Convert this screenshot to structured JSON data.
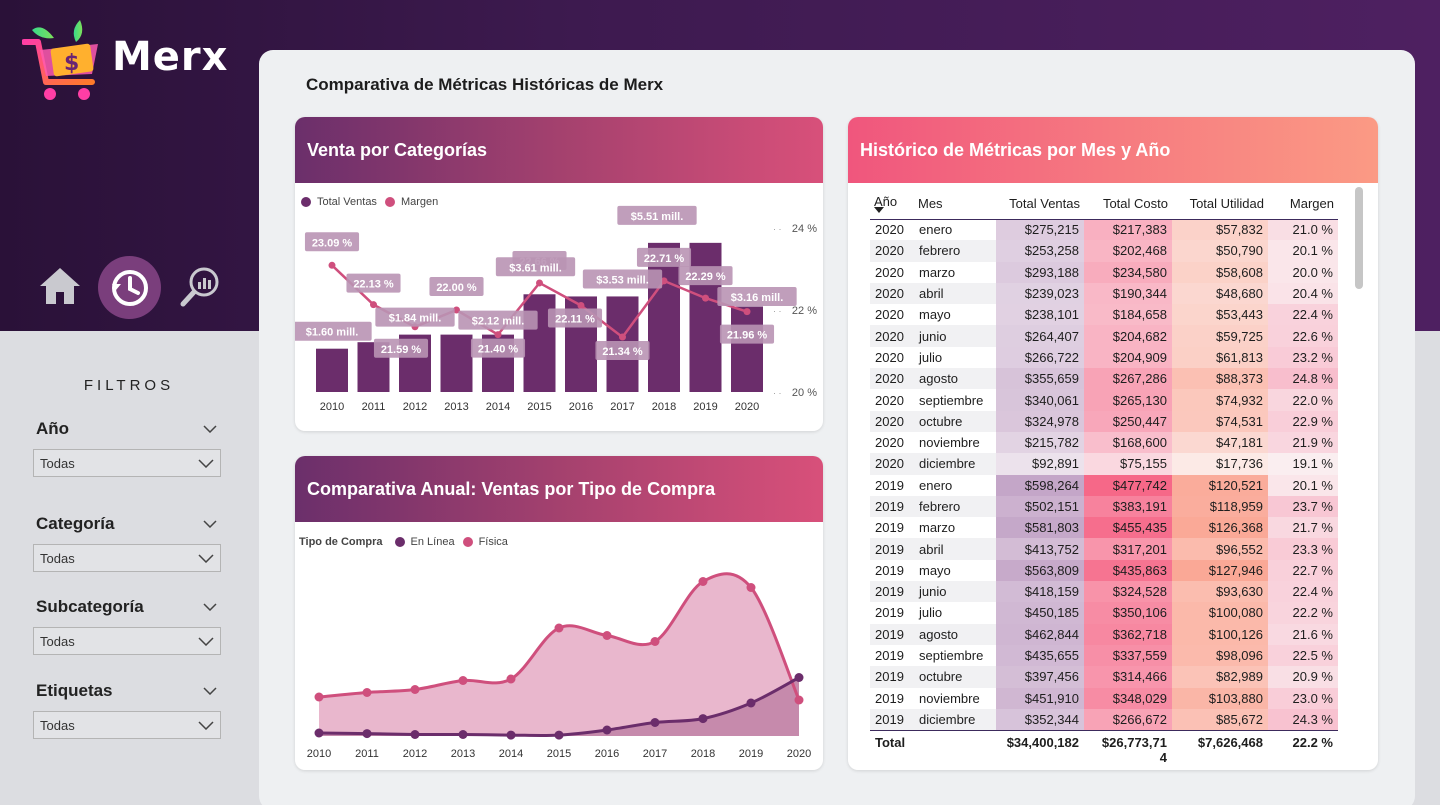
{
  "brand": {
    "name": "Merx"
  },
  "nav": {
    "home_icon": "home-icon",
    "history_icon": "history-icon",
    "analytics_icon": "search-chart-icon"
  },
  "filters": {
    "title": "FILTROS",
    "items": [
      {
        "label": "Año",
        "value": "Todas"
      },
      {
        "label": "Categoría",
        "value": "Todas"
      },
      {
        "label": "Subcategoría",
        "value": "Todas"
      },
      {
        "label": "Etiquetas",
        "value": "Todas"
      }
    ]
  },
  "page": {
    "title": "Comparativa de Métricas Históricas de Merx"
  },
  "colors": {
    "purple": "#6b2d6b",
    "pink": "#cf4f7d",
    "pink_fill": "#e9b7cd",
    "purple_fill": "#c68aac"
  },
  "chart_data": [
    {
      "type": "bar",
      "title": "Venta por Categorías",
      "legend": [
        "Total Ventas",
        "Margen"
      ],
      "categories": [
        "2010",
        "2011",
        "2012",
        "2013",
        "2014",
        "2015",
        "2016",
        "2017",
        "2018",
        "2019",
        "2020"
      ],
      "series": [
        {
          "name": "Total Ventas",
          "values": [
            1.6,
            1.84,
            2.12,
            2.12,
            2.12,
            3.61,
            3.53,
            3.53,
            5.51,
            5.51,
            3.16
          ]
        },
        {
          "name": "Margen",
          "values": [
            23.09,
            22.13,
            21.59,
            22.0,
            21.4,
            22.66,
            22.11,
            21.34,
            22.71,
            22.29,
            21.96
          ]
        }
      ],
      "bar_labels": [
        "$1.60 mill.",
        "$1.84 mill.",
        "$2.12 mill.",
        "$3.61 mill.",
        "$3.53 mill.",
        "$5.51 mill.",
        "$3.16 mill."
      ],
      "bar_label_years": [
        "2010",
        "2012",
        "2014",
        "2015",
        "2017",
        "2018",
        "2020"
      ],
      "margin_labels": [
        "23.09 %",
        "22.13 %",
        "21.59 %",
        "22.00 %",
        "21.40 %",
        "22.66 %",
        "22.11 %",
        "21.34 %",
        "22.71 %",
        "22.29 %",
        "21.96 %"
      ],
      "y2_ticks": [
        "24 %",
        "22 %",
        "20 %"
      ],
      "y2lim": [
        20,
        24
      ]
    },
    {
      "type": "area",
      "title": "Comparativa Anual: Ventas por Tipo de Compra",
      "legend_title": "Tipo de Compra",
      "legend": [
        "En Línea",
        "Física"
      ],
      "x": [
        "2010",
        "2011",
        "2012",
        "2013",
        "2014",
        "2015",
        "2016",
        "2017",
        "2018",
        "2019",
        "2020"
      ],
      "series": [
        {
          "name": "En Línea",
          "values": [
            0.1,
            0.08,
            0.05,
            0.05,
            0.03,
            0.03,
            0.2,
            0.45,
            0.58,
            1.1,
            1.95
          ]
        },
        {
          "name": "Física",
          "values": [
            1.3,
            1.45,
            1.55,
            1.85,
            1.9,
            3.6,
            3.35,
            3.15,
            5.15,
            4.95,
            1.2
          ]
        }
      ],
      "ylim": [
        0,
        5.6
      ]
    }
  ],
  "table": {
    "title": "Histórico de Métricas por Mes y Año",
    "columns": [
      "Año",
      "Mes",
      "Total Ventas",
      "Total Costo",
      "Total Utilidad",
      "Margen"
    ],
    "rows": [
      [
        "2020",
        "enero",
        "$275,215",
        "$217,383",
        "$57,832",
        "21.0 %"
      ],
      [
        "2020",
        "febrero",
        "$253,258",
        "$202,468",
        "$50,790",
        "20.1 %"
      ],
      [
        "2020",
        "marzo",
        "$293,188",
        "$234,580",
        "$58,608",
        "20.0 %"
      ],
      [
        "2020",
        "abril",
        "$239,023",
        "$190,344",
        "$48,680",
        "20.4 %"
      ],
      [
        "2020",
        "mayo",
        "$238,101",
        "$184,658",
        "$53,443",
        "22.4 %"
      ],
      [
        "2020",
        "junio",
        "$264,407",
        "$204,682",
        "$59,725",
        "22.6 %"
      ],
      [
        "2020",
        "julio",
        "$266,722",
        "$204,909",
        "$61,813",
        "23.2 %"
      ],
      [
        "2020",
        "agosto",
        "$355,659",
        "$267,286",
        "$88,373",
        "24.8 %"
      ],
      [
        "2020",
        "septiembre",
        "$340,061",
        "$265,130",
        "$74,932",
        "22.0 %"
      ],
      [
        "2020",
        "octubre",
        "$324,978",
        "$250,447",
        "$74,531",
        "22.9 %"
      ],
      [
        "2020",
        "noviembre",
        "$215,782",
        "$168,600",
        "$47,181",
        "21.9 %"
      ],
      [
        "2020",
        "diciembre",
        "$92,891",
        "$75,155",
        "$17,736",
        "19.1 %"
      ],
      [
        "2019",
        "enero",
        "$598,264",
        "$477,742",
        "$120,521",
        "20.1 %"
      ],
      [
        "2019",
        "febrero",
        "$502,151",
        "$383,191",
        "$118,959",
        "23.7 %"
      ],
      [
        "2019",
        "marzo",
        "$581,803",
        "$455,435",
        "$126,368",
        "21.7 %"
      ],
      [
        "2019",
        "abril",
        "$413,752",
        "$317,201",
        "$96,552",
        "23.3 %"
      ],
      [
        "2019",
        "mayo",
        "$563,809",
        "$435,863",
        "$127,946",
        "22.7 %"
      ],
      [
        "2019",
        "junio",
        "$418,159",
        "$324,528",
        "$93,630",
        "22.4 %"
      ],
      [
        "2019",
        "julio",
        "$450,185",
        "$350,106",
        "$100,080",
        "22.2 %"
      ],
      [
        "2019",
        "agosto",
        "$462,844",
        "$362,718",
        "$100,126",
        "21.6 %"
      ],
      [
        "2019",
        "septiembre",
        "$435,655",
        "$337,559",
        "$98,096",
        "22.5 %"
      ],
      [
        "2019",
        "octubre",
        "$397,456",
        "$314,466",
        "$82,989",
        "20.9 %"
      ],
      [
        "2019",
        "noviembre",
        "$451,910",
        "$348,029",
        "$103,880",
        "23.0 %"
      ],
      [
        "2019",
        "diciembre",
        "$352,344",
        "$266,672",
        "$85,672",
        "24.3 %"
      ]
    ],
    "total": {
      "label": "Total",
      "ventas": "$34,400,182",
      "costo": "$26,773,71\n4",
      "utilidad": "$7,626,468",
      "margen": "22.2 %"
    }
  }
}
